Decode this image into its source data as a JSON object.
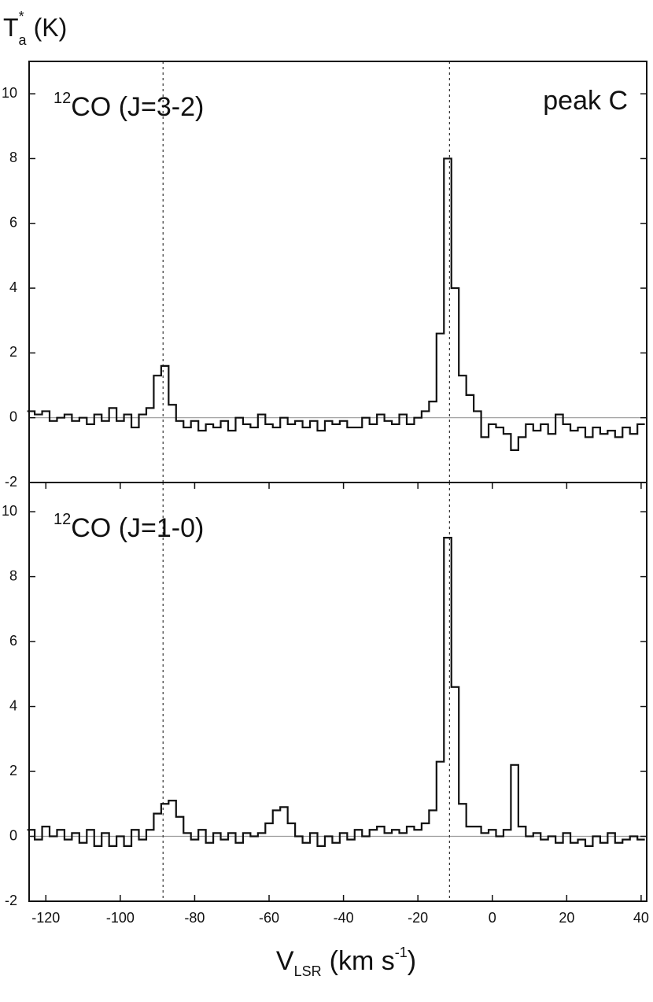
{
  "chart_data": [
    {
      "type": "line",
      "step": true,
      "color": "#111111",
      "title": {
        "sup": "12",
        "text": "CO (J=3-2)"
      },
      "annotation": "peak C",
      "y_label": {
        "main": "T",
        "sub": "a",
        "sup": "*",
        "unit": "(K)"
      },
      "vlines": [
        -88.5,
        -11.5
      ],
      "zero_line": true,
      "xlim": [
        -124.5,
        41.5
      ],
      "ylim": [
        -2,
        11
      ],
      "yticks": [
        -2,
        0,
        2,
        4,
        6,
        8,
        10
      ],
      "x": [
        -124,
        -122,
        -120,
        -118,
        -116,
        -114,
        -112,
        -110,
        -108,
        -106,
        -104,
        -102,
        -100,
        -98,
        -96,
        -94,
        -92,
        -90,
        -88,
        -86,
        -84,
        -82,
        -80,
        -78,
        -76,
        -74,
        -72,
        -70,
        -68,
        -66,
        -64,
        -62,
        -60,
        -58,
        -56,
        -54,
        -52,
        -50,
        -48,
        -46,
        -44,
        -42,
        -40,
        -38,
        -36,
        -34,
        -32,
        -30,
        -28,
        -26,
        -24,
        -22,
        -20,
        -18,
        -16,
        -14,
        -12,
        -10,
        -8,
        -6,
        -4,
        -2,
        0,
        2,
        4,
        6,
        8,
        10,
        12,
        14,
        16,
        18,
        20,
        22,
        24,
        26,
        28,
        30,
        32,
        34,
        36,
        38,
        40
      ],
      "values": [
        0.2,
        0.1,
        0.2,
        -0.1,
        0.0,
        0.1,
        -0.1,
        0.0,
        -0.2,
        0.1,
        -0.1,
        0.3,
        -0.1,
        0.1,
        -0.3,
        0.1,
        0.3,
        1.3,
        1.6,
        0.4,
        -0.1,
        -0.3,
        -0.1,
        -0.4,
        -0.2,
        -0.3,
        -0.1,
        -0.4,
        0.0,
        -0.2,
        -0.3,
        0.1,
        -0.2,
        -0.3,
        0.0,
        -0.2,
        -0.1,
        -0.3,
        -0.1,
        -0.4,
        -0.1,
        -0.2,
        -0.1,
        -0.3,
        -0.3,
        0.0,
        -0.2,
        0.1,
        -0.1,
        -0.2,
        0.1,
        -0.2,
        0.0,
        0.2,
        0.5,
        2.6,
        8.0,
        4.0,
        1.3,
        0.7,
        0.2,
        -0.6,
        -0.2,
        -0.3,
        -0.5,
        -1.0,
        -0.6,
        -0.2,
        -0.4,
        -0.2,
        -0.5,
        0.1,
        -0.2,
        -0.4,
        -0.3,
        -0.6,
        -0.3,
        -0.5,
        -0.4,
        -0.6,
        -0.3,
        -0.5,
        -0.2
      ]
    },
    {
      "type": "line",
      "step": true,
      "color": "#111111",
      "title": {
        "sup": "12",
        "text": "CO (J=1-0)"
      },
      "x_label": {
        "main": "V",
        "sub": "LSR",
        "unit": "(km s",
        "sup": "-1",
        "close": ")"
      },
      "vlines": [
        -88.5,
        -11.5
      ],
      "zero_line": true,
      "xlim": [
        -124.5,
        41.5
      ],
      "ylim": [
        -2,
        10.9
      ],
      "yticks": [
        -2,
        0,
        2,
        4,
        6,
        8,
        10
      ],
      "xticks": [
        -120,
        -100,
        -80,
        -60,
        -40,
        -20,
        0,
        20,
        40
      ],
      "x": [
        -124,
        -122,
        -120,
        -118,
        -116,
        -114,
        -112,
        -110,
        -108,
        -106,
        -104,
        -102,
        -100,
        -98,
        -96,
        -94,
        -92,
        -90,
        -88,
        -86,
        -84,
        -82,
        -80,
        -78,
        -76,
        -74,
        -72,
        -70,
        -68,
        -66,
        -64,
        -62,
        -60,
        -58,
        -56,
        -54,
        -52,
        -50,
        -48,
        -46,
        -44,
        -42,
        -40,
        -38,
        -36,
        -34,
        -32,
        -30,
        -28,
        -26,
        -24,
        -22,
        -20,
        -18,
        -16,
        -14,
        -12,
        -10,
        -8,
        -6,
        -4,
        -2,
        0,
        2,
        4,
        6,
        8,
        10,
        12,
        14,
        16,
        18,
        20,
        22,
        24,
        26,
        28,
        30,
        32,
        34,
        36,
        38,
        40
      ],
      "values": [
        0.2,
        -0.1,
        0.3,
        0.0,
        0.2,
        -0.1,
        0.1,
        -0.2,
        0.2,
        -0.3,
        0.1,
        -0.3,
        0.0,
        -0.3,
        0.2,
        -0.1,
        0.2,
        0.7,
        1.0,
        1.1,
        0.6,
        0.1,
        -0.1,
        0.2,
        -0.2,
        0.1,
        -0.1,
        0.1,
        -0.2,
        0.1,
        0.0,
        0.1,
        0.4,
        0.8,
        0.9,
        0.4,
        0.0,
        -0.2,
        0.1,
        -0.3,
        0.0,
        -0.2,
        0.1,
        -0.1,
        0.2,
        0.0,
        0.2,
        0.3,
        0.1,
        0.2,
        0.1,
        0.3,
        0.2,
        0.4,
        0.8,
        2.3,
        9.2,
        4.6,
        1.0,
        0.3,
        0.3,
        0.1,
        0.2,
        0.0,
        0.2,
        2.2,
        0.3,
        0.0,
        0.1,
        -0.1,
        0.0,
        -0.2,
        0.1,
        -0.2,
        -0.1,
        -0.3,
        0.0,
        -0.2,
        0.1,
        -0.2,
        -0.1,
        0.0,
        -0.1
      ]
    }
  ]
}
